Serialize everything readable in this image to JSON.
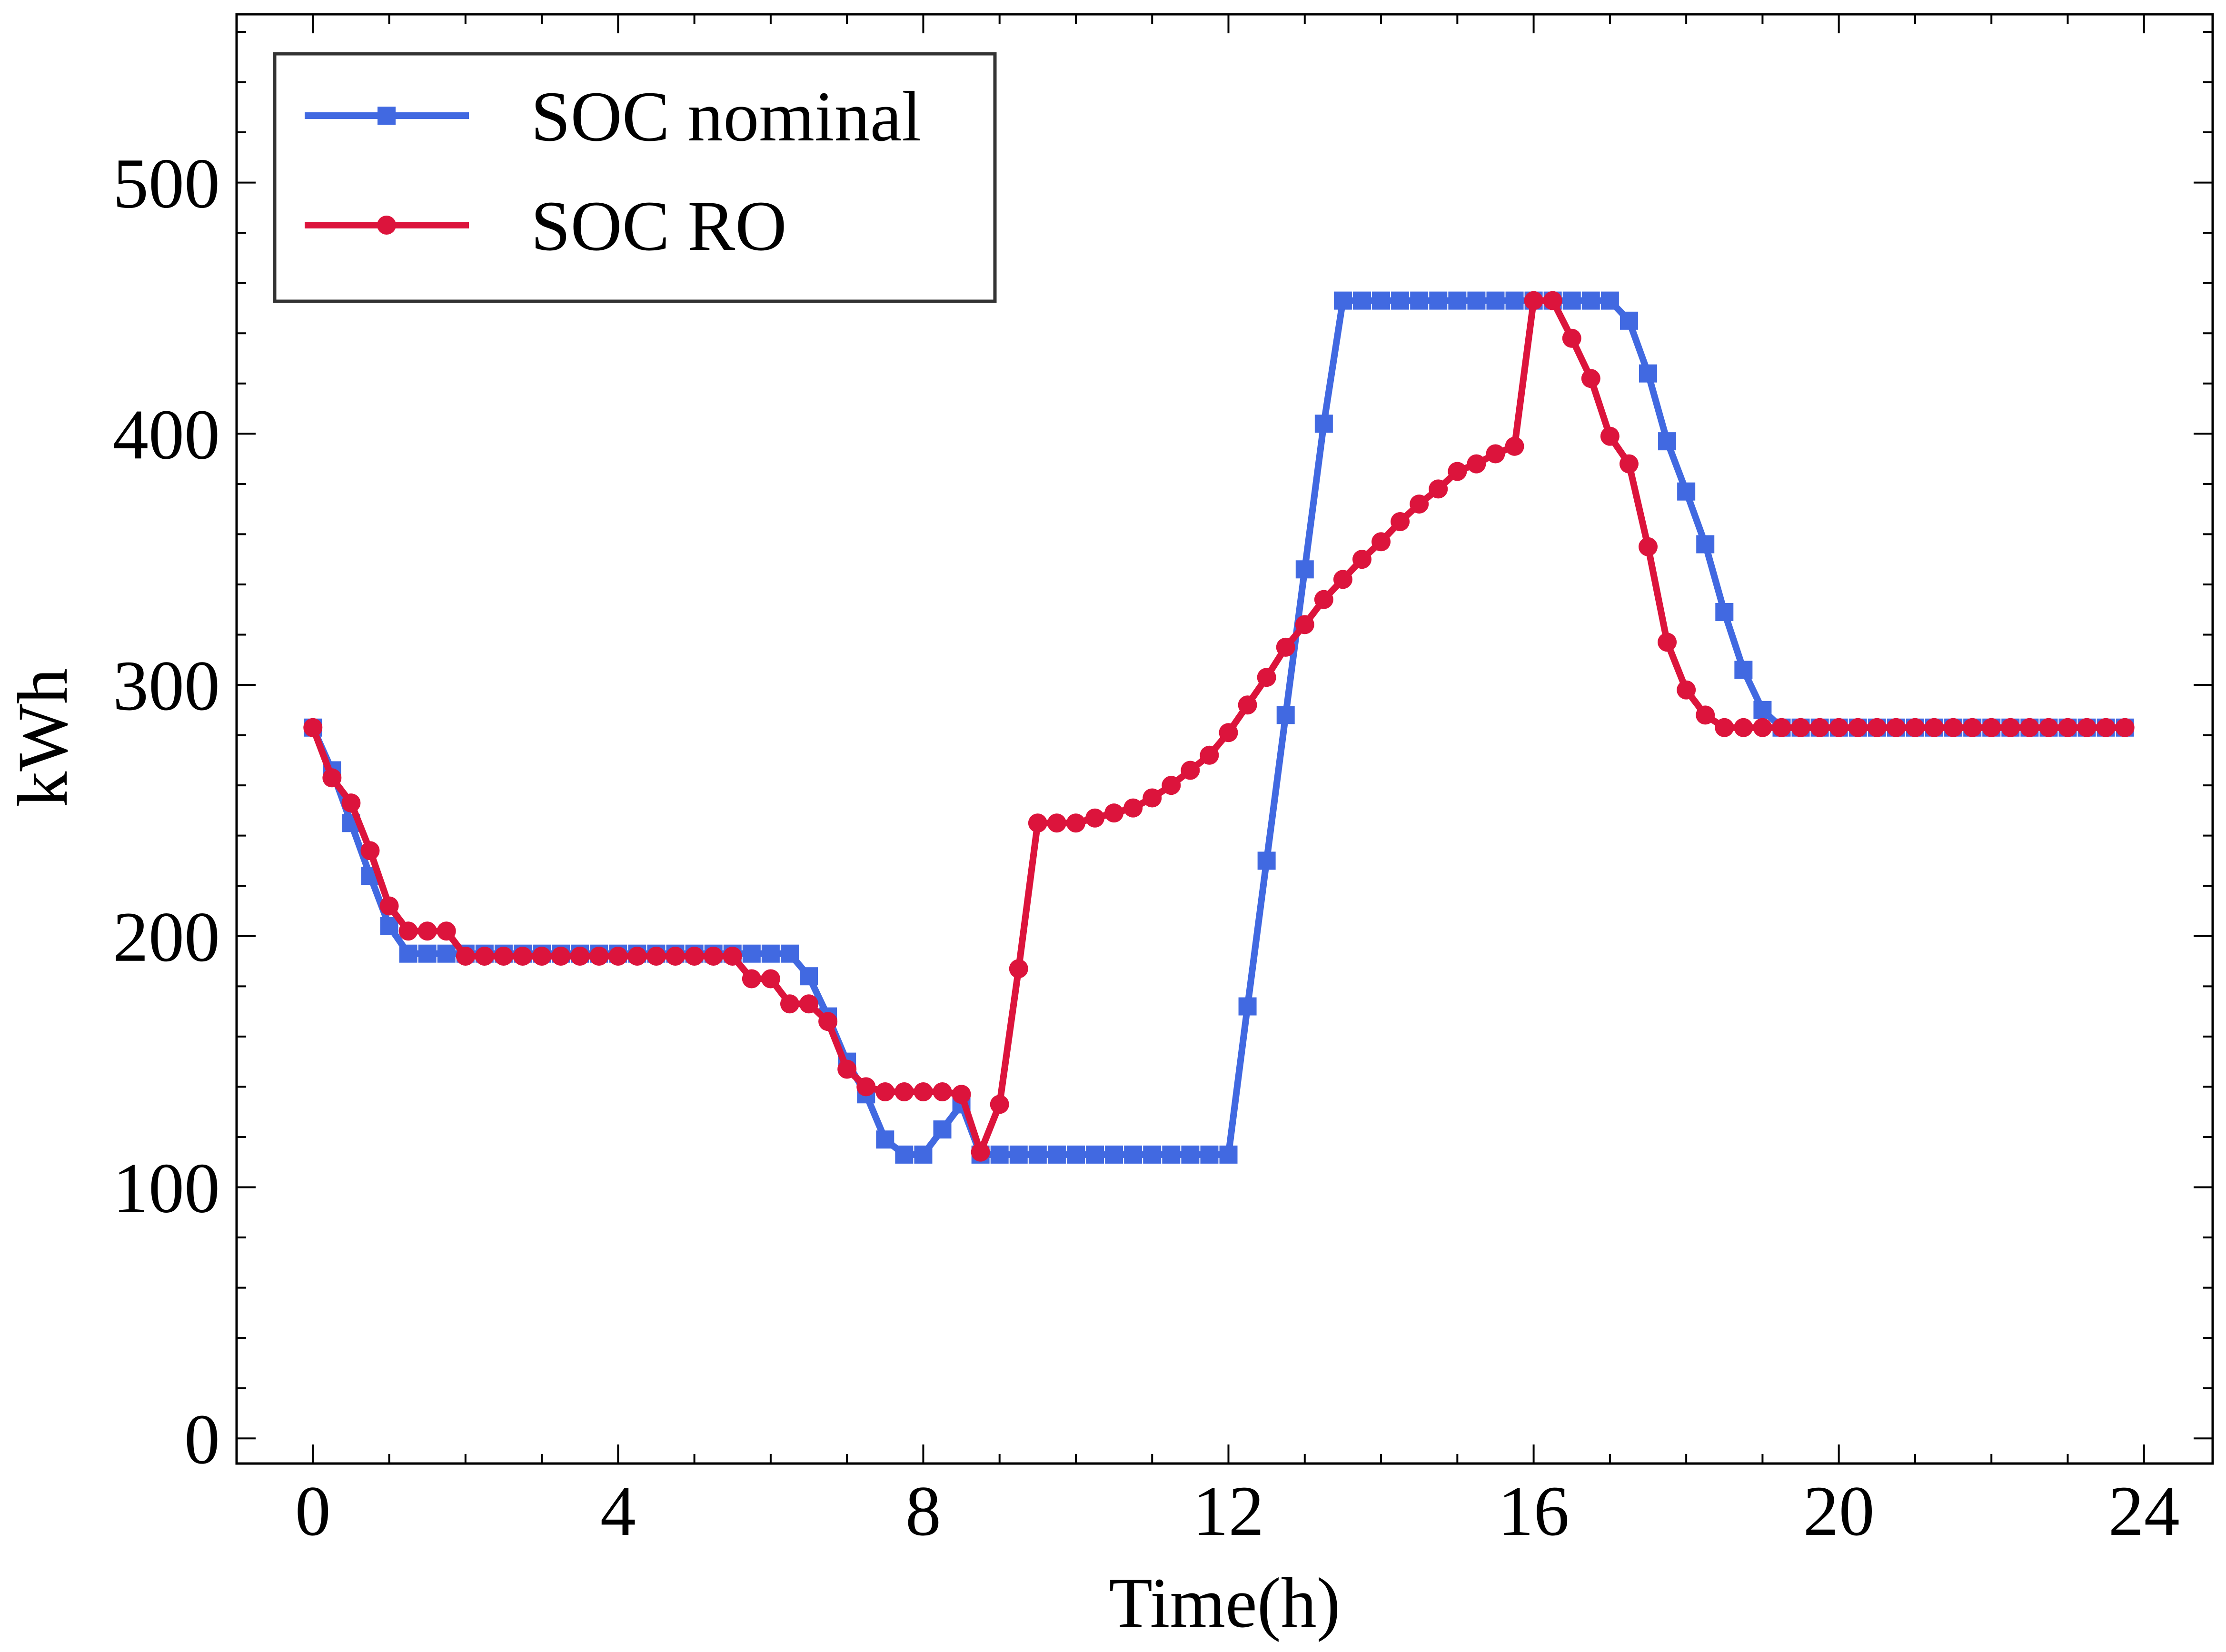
{
  "chart_data": {
    "type": "line",
    "xlabel": "Time(h)",
    "ylabel": "kWh",
    "xlim": [
      -1.0,
      24.9
    ],
    "ylim": [
      -10,
      567
    ],
    "xticks": [
      0,
      4,
      8,
      12,
      16,
      20,
      24
    ],
    "yticks": [
      0,
      100,
      200,
      300,
      400,
      500
    ],
    "grid": false,
    "legend_position": "top-left",
    "series": [
      {
        "name": "SOC nominal",
        "color": "#4169e1",
        "marker": "square",
        "x": [
          0,
          0.25,
          0.5,
          0.75,
          1,
          1.25,
          1.5,
          1.75,
          2,
          2.25,
          2.5,
          2.75,
          3,
          3.25,
          3.5,
          3.75,
          4,
          4.25,
          4.5,
          4.75,
          5,
          5.25,
          5.5,
          5.75,
          6,
          6.25,
          6.5,
          6.75,
          7,
          7.25,
          7.5,
          7.75,
          8,
          8.25,
          8.5,
          8.75,
          9,
          9.25,
          9.5,
          9.75,
          10,
          10.25,
          10.5,
          10.75,
          11,
          11.25,
          11.5,
          11.75,
          12,
          12.25,
          12.5,
          12.75,
          13,
          13.25,
          13.5,
          13.75,
          14,
          14.25,
          14.5,
          14.75,
          15,
          15.25,
          15.5,
          15.75,
          16,
          16.25,
          16.5,
          16.75,
          17,
          17.25,
          17.5,
          17.75,
          18,
          18.25,
          18.5,
          18.75,
          19,
          19.25,
          19.5,
          19.75,
          20,
          20.25,
          20.5,
          20.75,
          21,
          21.25,
          21.5,
          21.75,
          22,
          22.25,
          22.5,
          22.75,
          23,
          23.25,
          23.5,
          23.75
        ],
        "y": [
          283,
          266,
          245,
          224,
          204,
          193,
          193,
          193,
          193,
          193,
          193,
          193,
          193,
          193,
          193,
          193,
          193,
          193,
          193,
          193,
          193,
          193,
          193,
          193,
          193,
          193,
          184,
          168,
          150,
          137,
          119,
          113,
          113,
          123,
          133,
          113,
          113,
          113,
          113,
          113,
          113,
          113,
          113,
          113,
          113,
          113,
          113,
          113,
          113,
          172,
          230,
          288,
          346,
          404,
          453,
          453,
          453,
          453,
          453,
          453,
          453,
          453,
          453,
          453,
          453,
          453,
          453,
          453,
          453,
          445,
          424,
          397,
          377,
          356,
          329,
          306,
          290,
          283,
          283,
          283,
          283,
          283,
          283,
          283,
          283,
          283,
          283,
          283,
          283,
          283,
          283,
          283,
          283,
          283,
          283,
          283
        ]
      },
      {
        "name": "SOC RO",
        "color": "#dc143c",
        "marker": "circle",
        "x": [
          0,
          0.25,
          0.5,
          0.75,
          1,
          1.25,
          1.5,
          1.75,
          2,
          2.25,
          2.5,
          2.75,
          3,
          3.25,
          3.5,
          3.75,
          4,
          4.25,
          4.5,
          4.75,
          5,
          5.25,
          5.5,
          5.75,
          6,
          6.25,
          6.5,
          6.75,
          7,
          7.25,
          7.5,
          7.75,
          8,
          8.25,
          8.5,
          8.75,
          9,
          9.25,
          9.5,
          9.75,
          10,
          10.25,
          10.5,
          10.75,
          11,
          11.25,
          11.5,
          11.75,
          12,
          12.25,
          12.5,
          12.75,
          13,
          13.25,
          13.5,
          13.75,
          14,
          14.25,
          14.5,
          14.75,
          15,
          15.25,
          15.5,
          15.75,
          16,
          16.25,
          16.5,
          16.75,
          17,
          17.25,
          17.5,
          17.75,
          18,
          18.25,
          18.5,
          18.75,
          19,
          19.25,
          19.5,
          19.75,
          20,
          20.25,
          20.5,
          20.75,
          21,
          21.25,
          21.5,
          21.75,
          22,
          22.25,
          22.5,
          22.75,
          23,
          23.25,
          23.5,
          23.75
        ],
        "y": [
          283,
          263,
          253,
          234,
          212,
          202,
          202,
          202,
          192,
          192,
          192,
          192,
          192,
          192,
          192,
          192,
          192,
          192,
          192,
          192,
          192,
          192,
          192,
          183,
          183,
          173,
          173,
          166,
          147,
          140,
          138,
          138,
          138,
          138,
          137,
          114,
          133,
          187,
          245,
          245,
          245,
          247,
          249,
          251,
          255,
          260,
          266,
          272,
          281,
          292,
          303,
          315,
          324,
          334,
          342,
          350,
          357,
          365,
          372,
          378,
          385,
          388,
          392,
          395,
          453,
          453,
          438,
          422,
          399,
          388,
          355,
          317,
          298,
          288,
          283,
          283,
          283,
          283,
          283,
          283,
          283,
          283,
          283,
          283,
          283,
          283,
          283,
          283,
          283,
          283,
          283,
          283,
          283,
          283,
          283,
          283
        ]
      }
    ]
  }
}
